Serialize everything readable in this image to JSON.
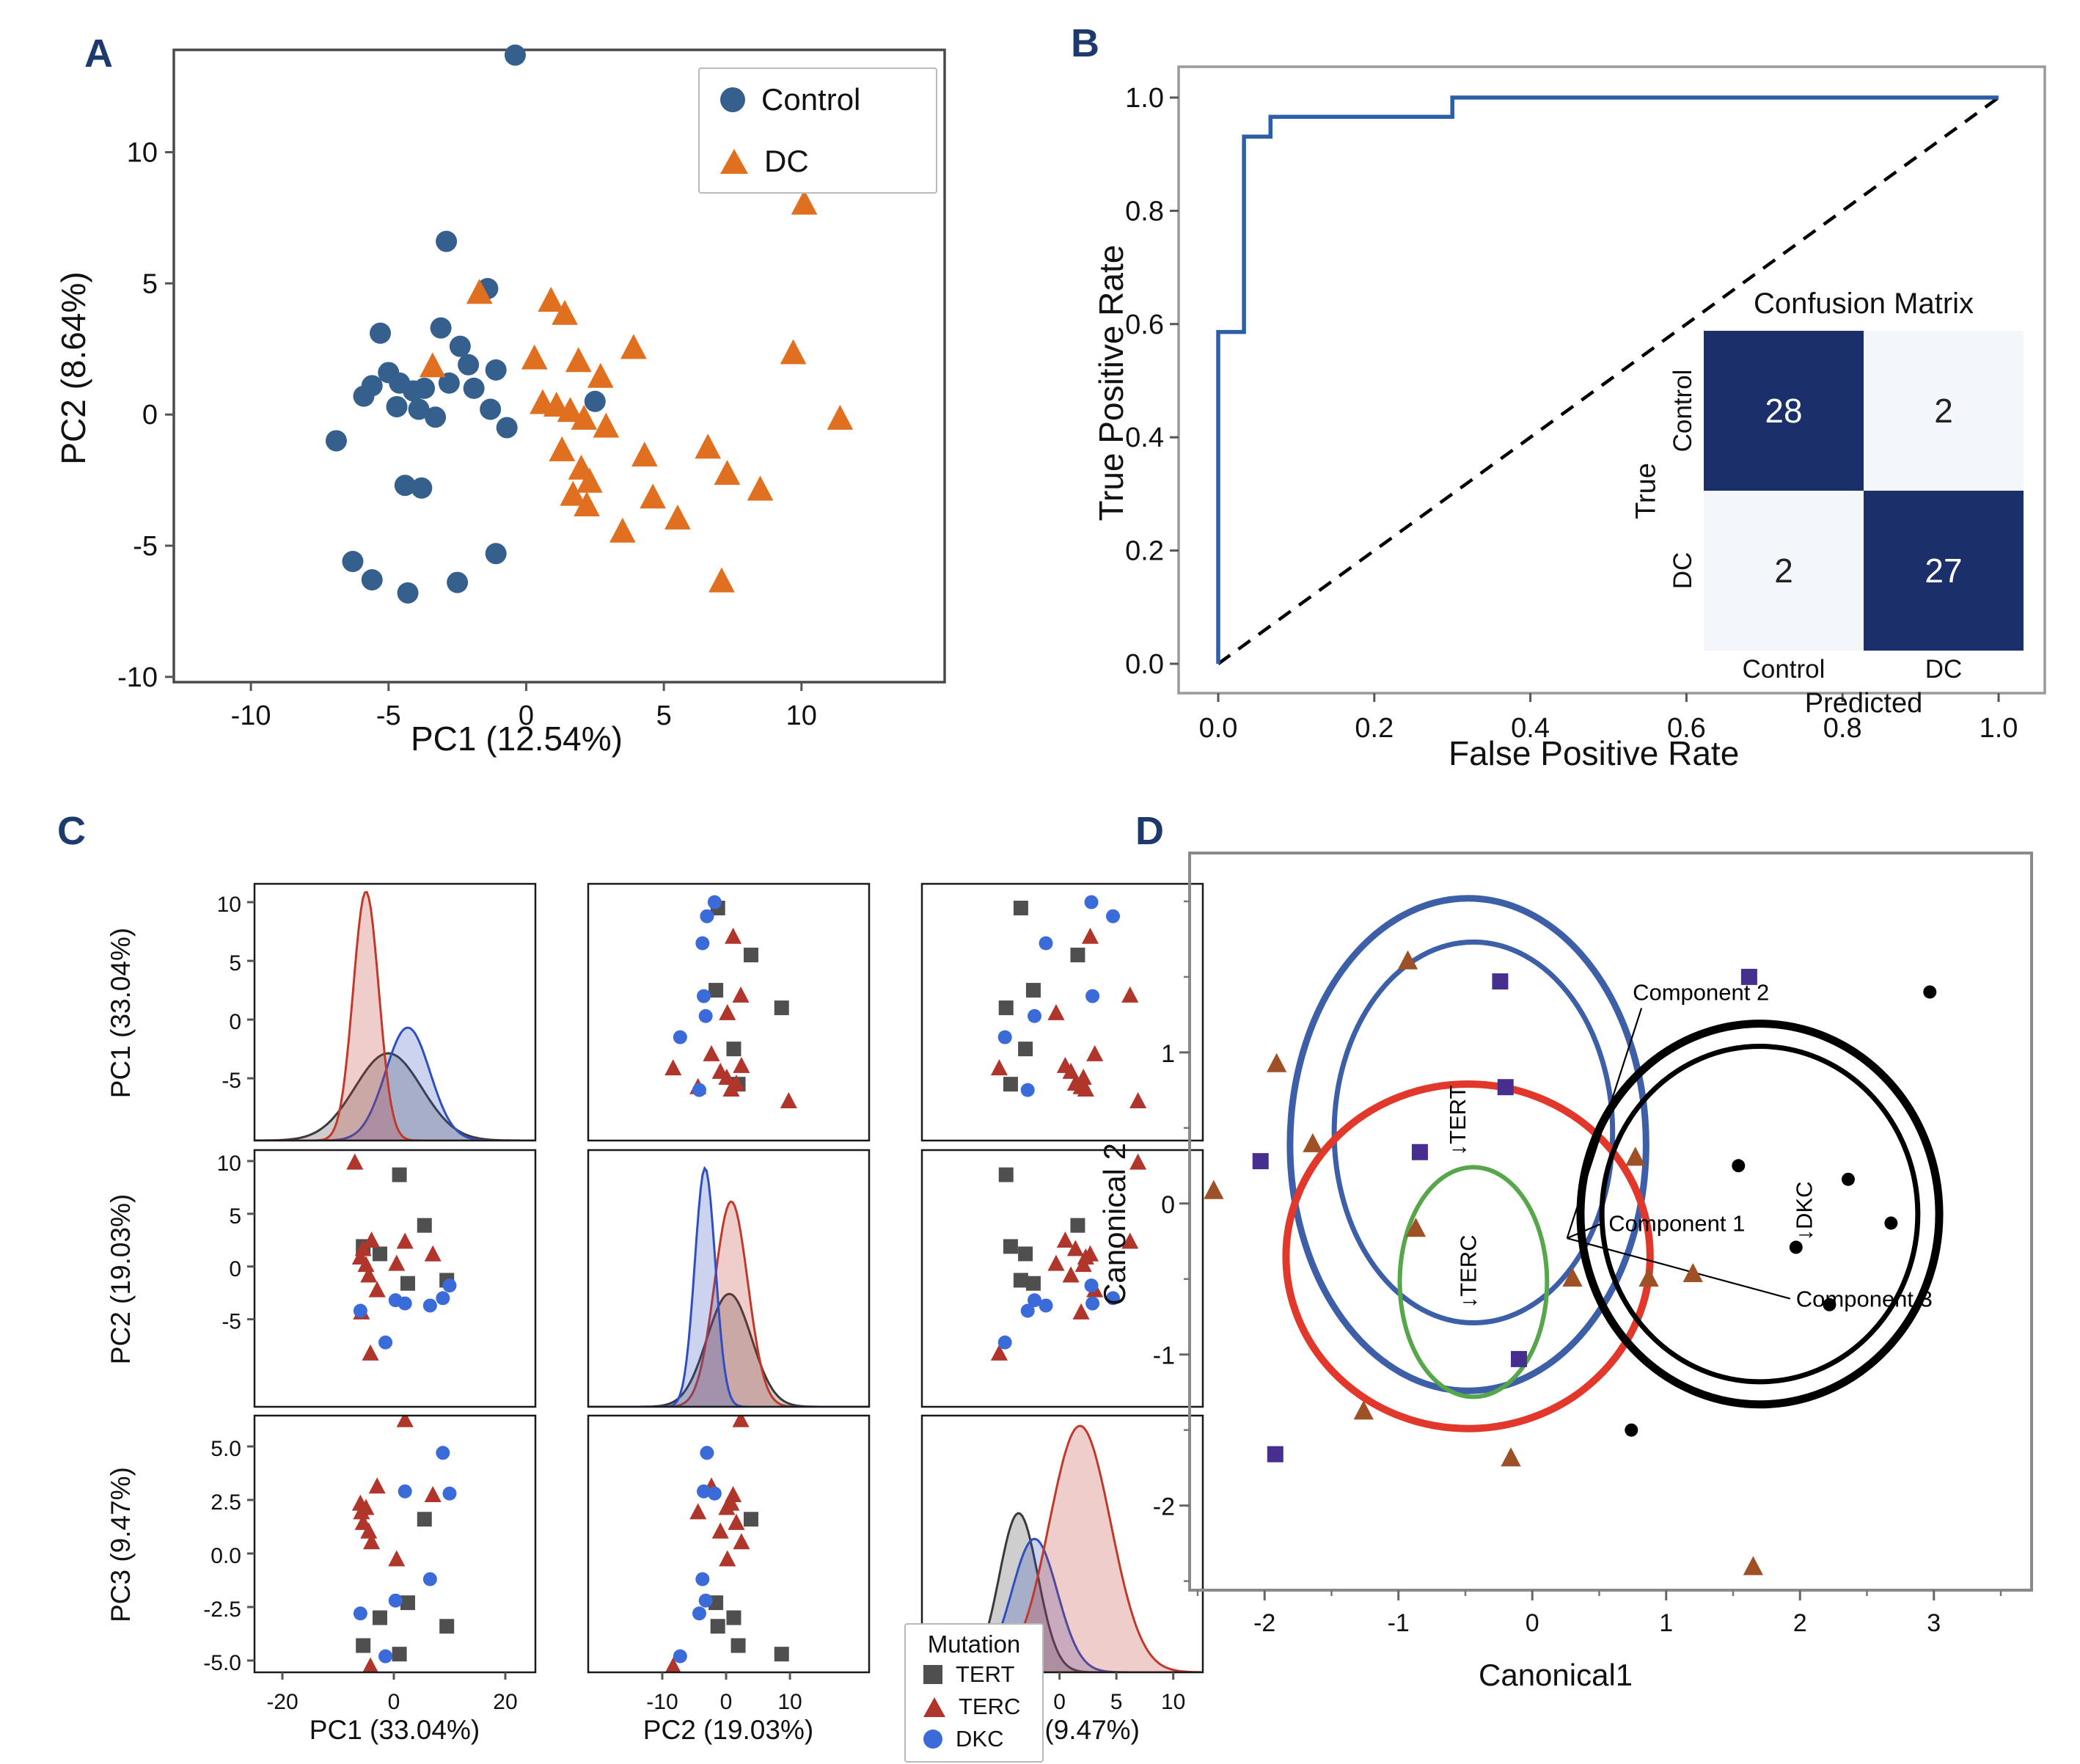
{
  "panel_letters": {
    "a": "A",
    "b": "B",
    "c": "C",
    "d": "D"
  },
  "colors": {
    "panel_letter": "#1e3a6d",
    "control_blue": "#355f8d",
    "dc_orange": "#e0701f",
    "roc_blue": "#2d5fa7",
    "cm_dark": "#1b2f6b",
    "cm_light": "#f3f6fb",
    "tert_gray": "#4f4f4f",
    "terc_red": "#b0352b",
    "dkc_blue": "#3a6bd8",
    "d_blue": "#3d5fa8",
    "d_red": "#e2382b",
    "d_green": "#57a64b",
    "d_black": "#000000",
    "d_triangle": "#9e5126",
    "d_square": "#472f8f"
  },
  "chart_data": [
    {
      "panel": "A",
      "type": "scatter",
      "xlabel": "PC1 (12.54%)",
      "ylabel": "PC2 (8.64%)",
      "xlim": [
        -12.8,
        15.2
      ],
      "ylim": [
        -10.2,
        13.9
      ],
      "xticks": [
        "-10",
        "-5",
        "0",
        "5",
        "10"
      ],
      "yticks": [
        "10",
        "5",
        "0",
        "-5",
        "-10"
      ],
      "legend": {
        "entries": [
          {
            "label": "Control",
            "marker": "circle",
            "color": "#355f8d"
          },
          {
            "label": "DC",
            "marker": "triangle",
            "color": "#e0701f"
          }
        ]
      },
      "series": [
        {
          "name": "Control",
          "marker": "circle",
          "color": "#355f8d",
          "points": [
            [
              -0.4,
              13.7
            ],
            [
              -2.9,
              6.6
            ],
            [
              -1.4,
              4.8
            ],
            [
              -5.3,
              3.1
            ],
            [
              -3.1,
              3.3
            ],
            [
              -2.4,
              2.6
            ],
            [
              -2.1,
              1.9
            ],
            [
              -5.0,
              1.6
            ],
            [
              -5.6,
              1.1
            ],
            [
              -4.6,
              1.2
            ],
            [
              -4.1,
              0.9
            ],
            [
              -3.7,
              1.0
            ],
            [
              -5.9,
              0.7
            ],
            [
              -4.7,
              0.3
            ],
            [
              -3.9,
              0.2
            ],
            [
              -3.3,
              -0.1
            ],
            [
              -2.8,
              1.2
            ],
            [
              -1.9,
              1.0
            ],
            [
              -1.1,
              1.7
            ],
            [
              -1.3,
              0.2
            ],
            [
              -0.7,
              -0.5
            ],
            [
              2.5,
              0.5
            ],
            [
              -6.9,
              -1.0
            ],
            [
              -4.4,
              -2.7
            ],
            [
              -3.8,
              -2.8
            ],
            [
              -6.3,
              -5.6
            ],
            [
              -5.6,
              -6.3
            ],
            [
              -4.3,
              -6.8
            ],
            [
              -2.5,
              -6.4
            ],
            [
              -1.1,
              -5.3
            ]
          ]
        },
        {
          "name": "DC",
          "marker": "triangle",
          "color": "#e0701f",
          "points": [
            [
              -1.7,
              4.6
            ],
            [
              0.9,
              4.3
            ],
            [
              1.4,
              3.8
            ],
            [
              3.9,
              2.5
            ],
            [
              10.1,
              8.0
            ],
            [
              9.7,
              2.3
            ],
            [
              11.4,
              -0.2
            ],
            [
              -3.4,
              1.8
            ],
            [
              0.3,
              2.1
            ],
            [
              1.9,
              2.0
            ],
            [
              2.7,
              1.4
            ],
            [
              0.6,
              0.4
            ],
            [
              1.1,
              0.3
            ],
            [
              1.6,
              0.1
            ],
            [
              2.1,
              -0.2
            ],
            [
              2.9,
              -0.5
            ],
            [
              1.3,
              -1.4
            ],
            [
              2.0,
              -2.1
            ],
            [
              2.3,
              -2.6
            ],
            [
              1.7,
              -3.1
            ],
            [
              2.2,
              -3.5
            ],
            [
              4.3,
              -1.6
            ],
            [
              6.6,
              -1.3
            ],
            [
              7.3,
              -2.3
            ],
            [
              5.5,
              -4.0
            ],
            [
              3.5,
              -4.5
            ],
            [
              7.1,
              -6.4
            ],
            [
              4.6,
              -3.2
            ],
            [
              8.5,
              -2.9
            ]
          ]
        }
      ]
    },
    {
      "panel": "B",
      "type": "line",
      "xlabel": "False Positive Rate",
      "ylabel": "True Positive Rate",
      "xlim": [
        -0.05,
        1.06
      ],
      "ylim": [
        -0.05,
        1.05
      ],
      "xticks": [
        "0.0",
        "0.2",
        "0.4",
        "0.6",
        "0.8",
        "1.0"
      ],
      "yticks": [
        "0.0",
        "0.2",
        "0.4",
        "0.6",
        "0.8",
        "1.0"
      ],
      "roc_curve": {
        "color": "#2d5fa7",
        "points": [
          [
            0,
            0
          ],
          [
            0,
            0.586
          ],
          [
            0.033,
            0.586
          ],
          [
            0.033,
            0.931
          ],
          [
            0.067,
            0.931
          ],
          [
            0.067,
            0.966
          ],
          [
            0.3,
            0.966
          ],
          [
            0.3,
            1.0
          ],
          [
            1.0,
            1.0
          ]
        ]
      },
      "diagonal": {
        "style": "dashed",
        "points": [
          [
            0,
            0
          ],
          [
            1,
            1
          ]
        ]
      },
      "confusion_matrix": {
        "title": "Confusion Matrix",
        "row_axis_label": "True",
        "col_axis_label": "Predicted",
        "row_labels": [
          "Control",
          "DC"
        ],
        "col_labels": [
          "Control",
          "DC"
        ],
        "values": [
          [
            28,
            2
          ],
          [
            2,
            27
          ]
        ],
        "dark_color": "#1b2f6b",
        "light_color": "#f3f6fb"
      }
    },
    {
      "panel": "C",
      "type": "pairplot",
      "dims": [
        {
          "label": "PC1 (33.04%)",
          "col_ticks": [
            "-20",
            "0",
            "20"
          ],
          "col_lim": [
            -25.0,
            25.4
          ],
          "row_ticks": [
            "10",
            "5",
            "0",
            "-5"
          ],
          "row_lim": [
            -10.3,
            11.56
          ]
        },
        {
          "label": "PC2 (19.03%)",
          "col_ticks": [
            "-10",
            "0",
            "10"
          ],
          "col_lim": [
            -21.6,
            22.4
          ],
          "row_ticks": [
            "10",
            "5",
            "0",
            "-5"
          ],
          "row_lim": [
            -13.3,
            11.04
          ]
        },
        {
          "label": "PC3 (9.47%)",
          "col_ticks": [
            "-10",
            "-5",
            "0",
            "5",
            "10"
          ],
          "col_lim": [
            -12.1,
            12.6
          ],
          "row_ticks": [
            "5.0",
            "2.5",
            "0.0",
            "-2.5",
            "-5.0"
          ],
          "row_lim": [
            -5.55,
            6.44
          ]
        }
      ],
      "legend": {
        "title": "Mutation",
        "entries": [
          {
            "label": "TERT",
            "marker": "square",
            "color": "#4f4f4f"
          },
          {
            "label": "TERC",
            "marker": "triangle",
            "color": "#b0352b"
          },
          {
            "label": "DKC",
            "marker": "circle",
            "color": "#3a6bd8"
          }
        ]
      },
      "groups": [
        {
          "name": "TERT",
          "marker": "square",
          "color": "#4f4f4f",
          "kde_color": "#3a3a3a",
          "samples": [
            [
              -5.5,
              1.9,
              -4.3
            ],
            [
              -2.5,
              1.2,
              -3.0
            ],
            [
              2.5,
              -1.6,
              -2.3
            ],
            [
              9.5,
              -1.3,
              -3.4
            ],
            [
              5.5,
              3.9,
              1.6
            ],
            [
              1.0,
              8.7,
              -4.7
            ]
          ],
          "kde": [
            {
              "mean": -1.0,
              "sd": 6.0,
              "peak": 0.34
            },
            {
              "mean": 0.5,
              "sd": 3.5,
              "peak": 0.44
            },
            {
              "mean": -3.6,
              "sd": 1.7,
              "peak": 0.62
            }
          ]
        },
        {
          "name": "TERC",
          "marker": "triangle",
          "color": "#b0352b",
          "kde_color": "#c0392b",
          "samples": [
            [
              -7.0,
              9.8,
              6.9
            ],
            [
              -6.0,
              0.8,
              2.3
            ],
            [
              -5.5,
              1.6,
              1.4
            ],
            [
              -5.0,
              0.1,
              2.1
            ],
            [
              -4.5,
              -0.9,
              1.0
            ],
            [
              -4.0,
              2.4,
              0.5
            ],
            [
              -3.0,
              -2.3,
              3.1
            ],
            [
              -5.8,
              -4.4,
              1.9
            ],
            [
              2.0,
              2.3,
              6.2
            ],
            [
              0.5,
              0.2,
              -0.3
            ],
            [
              -4.2,
              -8.3,
              -5.3
            ],
            [
              7.0,
              1.1,
              2.7
            ]
          ],
          "kde": [
            {
              "mean": -5.0,
              "sd": 2.3,
              "peak": 0.97
            },
            {
              "mean": 0.8,
              "sd": 2.6,
              "peak": 0.8
            },
            {
              "mean": 1.8,
              "sd": 2.7,
              "peak": 0.96
            }
          ]
        },
        {
          "name": "DKC",
          "marker": "circle",
          "color": "#3a6bd8",
          "kde_color": "#2f4fc1",
          "samples": [
            [
              10.0,
              -1.8,
              2.8
            ],
            [
              8.8,
              -3.0,
              4.7
            ],
            [
              6.5,
              -3.7,
              -1.2
            ],
            [
              2.0,
              -3.5,
              2.9
            ],
            [
              0.3,
              -3.2,
              -2.2
            ],
            [
              -6.0,
              -4.2,
              -2.8
            ],
            [
              -1.5,
              -7.2,
              -4.8
            ]
          ],
          "kde": [
            {
              "mean": 2.5,
              "sd": 4.0,
              "peak": 0.44
            },
            {
              "mean": -3.3,
              "sd": 1.6,
              "peak": 0.93
            },
            {
              "mean": -2.2,
              "sd": 2.0,
              "peak": 0.52
            }
          ]
        }
      ],
      "kde_draw_order": [
        [
          0,
          2,
          1
        ],
        [
          0,
          1,
          2
        ],
        [
          0,
          2,
          1
        ]
      ]
    },
    {
      "panel": "D",
      "type": "scatter",
      "xlabel": "Canonical1",
      "ylabel": "Canonical 2",
      "xlim": [
        -2.56,
        3.73
      ],
      "ylim": [
        -2.56,
        2.32
      ],
      "xticks": [
        "-2",
        "-1",
        "0",
        "1",
        "2",
        "3"
      ],
      "yticks": [
        "1",
        "0",
        "-1",
        "-2"
      ],
      "minor_xticks": [
        -2.5,
        -1.5,
        -0.5,
        0.5,
        1.5,
        2.5,
        3.5
      ],
      "minor_yticks": [
        2.0,
        1.5,
        0.5,
        -0.5,
        -1.5,
        -2.5
      ],
      "ellipses": [
        {
          "name": "TERT-outer",
          "color": "#3d5fa8",
          "cx": -0.48,
          "cy": 0.39,
          "rx": 1.33,
          "ry": 1.63,
          "width": 9
        },
        {
          "name": "TERT-inner",
          "color": "#3d5fa8",
          "cx": -0.44,
          "cy": 0.47,
          "rx": 1.04,
          "ry": 1.26,
          "width": 7
        },
        {
          "name": "TERC-outer",
          "color": "#e2382b",
          "cx": -0.48,
          "cy": -0.35,
          "rx": 1.36,
          "ry": 1.14,
          "width": 10
        },
        {
          "name": "TERC-inner",
          "color": "#57a64b",
          "cx": -0.44,
          "cy": -0.52,
          "rx": 0.55,
          "ry": 0.76,
          "width": 6
        },
        {
          "name": "DKC-outer",
          "color": "#000000",
          "cx": 1.7,
          "cy": -0.07,
          "rx": 1.34,
          "ry": 1.26,
          "width": 11
        },
        {
          "name": "DKC-inner",
          "color": "#000000",
          "cx": 1.7,
          "cy": -0.07,
          "rx": 1.18,
          "ry": 1.11,
          "width": 7
        }
      ],
      "group_labels": [
        {
          "text": "↓TERT",
          "x": -0.5,
          "y": 0.55
        },
        {
          "text": "↓TERC",
          "x": -0.42,
          "y": -0.45
        },
        {
          "text": "↓DKC",
          "x": 2.09,
          "y": -0.05
        }
      ],
      "annotations": [
        {
          "text": "Component 2",
          "tx": 0.75,
          "ty": 1.4,
          "ax": 0.26,
          "ay": -0.23
        },
        {
          "text": "Component 1",
          "tx": 0.57,
          "ty": -0.13,
          "ax": 0.26,
          "ay": -0.23
        },
        {
          "text": "Component 3",
          "tx": 1.97,
          "ty": -0.63,
          "ax": 0.26,
          "ay": -0.23
        }
      ],
      "series": [
        {
          "name": "TERC",
          "marker": "triangle",
          "color": "#9e5126",
          "points": [
            [
              -0.93,
              1.6
            ],
            [
              -1.91,
              0.92
            ],
            [
              -2.38,
              0.08
            ],
            [
              -1.64,
              0.39
            ],
            [
              -0.87,
              -0.17
            ],
            [
              0.77,
              0.3
            ],
            [
              0.3,
              -0.5
            ],
            [
              0.87,
              -0.5
            ],
            [
              -1.26,
              -1.38
            ],
            [
              -0.16,
              -1.69
            ],
            [
              1.2,
              -0.47
            ],
            [
              1.65,
              -2.41
            ]
          ]
        },
        {
          "name": "TERT",
          "marker": "square",
          "color": "#472f8f",
          "points": [
            [
              -0.24,
              1.47
            ],
            [
              1.62,
              1.5
            ],
            [
              -0.2,
              0.77
            ],
            [
              -0.84,
              0.34
            ],
            [
              -2.03,
              0.28
            ],
            [
              -1.92,
              -1.66
            ],
            [
              -0.1,
              -1.03
            ]
          ]
        },
        {
          "name": "DKC",
          "marker": "circle",
          "color": "#000000",
          "points": [
            [
              2.97,
              1.4
            ],
            [
              1.54,
              0.25
            ],
            [
              2.36,
              0.16
            ],
            [
              2.68,
              -0.13
            ],
            [
              1.97,
              -0.29
            ],
            [
              2.22,
              -0.67
            ],
            [
              0.74,
              -1.5
            ]
          ]
        }
      ]
    }
  ]
}
